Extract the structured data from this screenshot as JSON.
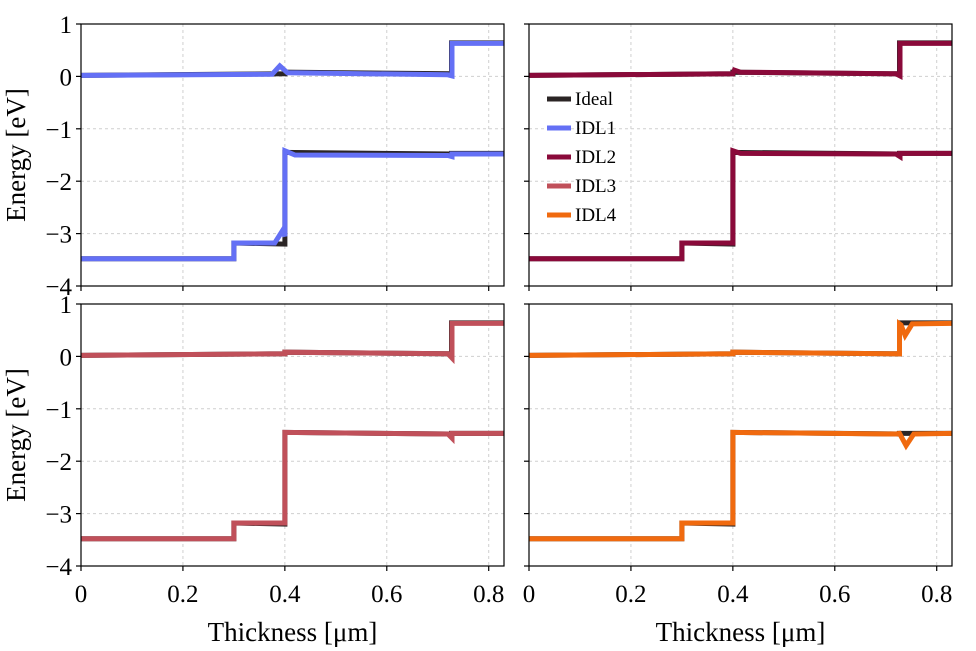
{
  "chart_data": {
    "type": "line",
    "xlim": [
      0,
      0.83
    ],
    "ylim": [
      -4,
      1
    ],
    "x_ticks": [
      "0",
      "0.2",
      "0.4",
      "0.6",
      "0.8"
    ],
    "x_tick_values": [
      0,
      0.2,
      0.4,
      0.6,
      0.8
    ],
    "y_ticks": [
      "1",
      "0",
      "−1",
      "−2",
      "−3",
      "−4"
    ],
    "y_tick_values": [
      1,
      0,
      -1,
      -2,
      -3,
      -4
    ],
    "xlabel": "Thickness [μm]",
    "ylabel": "Energy [eV]",
    "grid": true,
    "legend": {
      "placement": "center-left of top-right panel",
      "entries": [
        {
          "name": "Ideal",
          "color": "#2b2525"
        },
        {
          "name": "IDL1",
          "color": "#6470f5"
        },
        {
          "name": "IDL2",
          "color": "#8a0a3a"
        },
        {
          "name": "IDL3",
          "color": "#c0505a"
        },
        {
          "name": "IDL4",
          "color": "#f06a0f"
        }
      ]
    },
    "reference": {
      "name": "Ideal",
      "color": "#2b2525",
      "cb": [
        [
          0,
          0.02
        ],
        [
          0.4,
          0.05
        ],
        [
          0.4,
          0.08
        ],
        [
          0.727,
          0.05
        ],
        [
          0.727,
          0.64
        ],
        [
          0.83,
          0.64
        ]
      ],
      "vb": [
        [
          0,
          -3.48
        ],
        [
          0.3,
          -3.48
        ],
        [
          0.3,
          -3.18
        ],
        [
          0.4,
          -3.2
        ],
        [
          0.4,
          -1.45
        ],
        [
          0.727,
          -1.48
        ],
        [
          0.727,
          -1.47
        ],
        [
          0.83,
          -1.47
        ]
      ]
    },
    "panels": [
      {
        "position": "top-left",
        "series": "IDL1",
        "color": "#6470f5",
        "show_ylabel": true,
        "show_xlabel": false,
        "cb": [
          [
            0,
            0.02
          ],
          [
            0.375,
            0.04
          ],
          [
            0.39,
            0.2
          ],
          [
            0.405,
            0.07
          ],
          [
            0.72,
            0.03
          ],
          [
            0.728,
            0.01
          ],
          [
            0.728,
            0.63
          ],
          [
            0.83,
            0.63
          ]
        ],
        "vb": [
          [
            0,
            -3.48
          ],
          [
            0.3,
            -3.48
          ],
          [
            0.3,
            -3.18
          ],
          [
            0.38,
            -3.18
          ],
          [
            0.395,
            -2.95
          ],
          [
            0.4,
            -3.05
          ],
          [
            0.4,
            -1.42
          ],
          [
            0.42,
            -1.5
          ],
          [
            0.72,
            -1.51
          ],
          [
            0.728,
            -1.53
          ],
          [
            0.728,
            -1.48
          ],
          [
            0.83,
            -1.48
          ]
        ]
      },
      {
        "position": "top-right",
        "series": "IDL2",
        "color": "#8a0a3a",
        "show_ylabel": false,
        "show_xlabel": false,
        "cb": [
          [
            0,
            0.02
          ],
          [
            0.4,
            0.05
          ],
          [
            0.403,
            0.12
          ],
          [
            0.415,
            0.08
          ],
          [
            0.72,
            0.05
          ],
          [
            0.728,
            0.01
          ],
          [
            0.728,
            0.63
          ],
          [
            0.83,
            0.63
          ]
        ],
        "vb": [
          [
            0,
            -3.48
          ],
          [
            0.3,
            -3.48
          ],
          [
            0.3,
            -3.18
          ],
          [
            0.4,
            -3.18
          ],
          [
            0.4,
            -1.42
          ],
          [
            0.415,
            -1.47
          ],
          [
            0.72,
            -1.48
          ],
          [
            0.728,
            -1.53
          ],
          [
            0.728,
            -1.47
          ],
          [
            0.83,
            -1.47
          ]
        ]
      },
      {
        "position": "bottom-left",
        "series": "IDL3",
        "color": "#c0505a",
        "show_ylabel": true,
        "show_xlabel": true,
        "cb": [
          [
            0,
            0.02
          ],
          [
            0.4,
            0.05
          ],
          [
            0.4,
            0.08
          ],
          [
            0.72,
            0.05
          ],
          [
            0.728,
            -0.03
          ],
          [
            0.728,
            0.63
          ],
          [
            0.83,
            0.63
          ]
        ],
        "vb": [
          [
            0,
            -3.48
          ],
          [
            0.3,
            -3.48
          ],
          [
            0.3,
            -3.18
          ],
          [
            0.4,
            -3.18
          ],
          [
            0.4,
            -1.45
          ],
          [
            0.72,
            -1.48
          ],
          [
            0.728,
            -1.56
          ],
          [
            0.728,
            -1.47
          ],
          [
            0.83,
            -1.47
          ]
        ]
      },
      {
        "position": "bottom-right",
        "series": "IDL4",
        "color": "#f06a0f",
        "show_ylabel": false,
        "show_xlabel": true,
        "cb": [
          [
            0,
            0.02
          ],
          [
            0.4,
            0.05
          ],
          [
            0.4,
            0.08
          ],
          [
            0.727,
            0.05
          ],
          [
            0.727,
            0.62
          ],
          [
            0.73,
            0.6
          ],
          [
            0.738,
            0.4
          ],
          [
            0.752,
            0.62
          ],
          [
            0.83,
            0.63
          ]
        ],
        "vb": [
          [
            0,
            -3.48
          ],
          [
            0.3,
            -3.48
          ],
          [
            0.3,
            -3.18
          ],
          [
            0.4,
            -3.18
          ],
          [
            0.4,
            -1.45
          ],
          [
            0.72,
            -1.48
          ],
          [
            0.727,
            -1.47
          ],
          [
            0.74,
            -1.7
          ],
          [
            0.755,
            -1.48
          ],
          [
            0.83,
            -1.47
          ]
        ]
      }
    ]
  }
}
